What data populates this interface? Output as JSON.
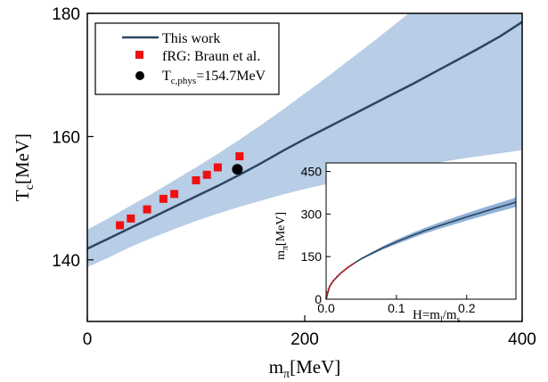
{
  "chart_data": [
    {
      "type": "line",
      "xlabel": "m",
      "xlabel_sub": "π",
      "xlabel_unit": "[MeV]",
      "ylabel": "T",
      "ylabel_sub": "c",
      "ylabel_unit": "[MeV]",
      "xlim": [
        0,
        400
      ],
      "ylim": [
        130,
        180
      ],
      "xticks": [
        0,
        200,
        400
      ],
      "xtick_labels": [
        "0",
        "200",
        "400"
      ],
      "yticks": [
        140,
        160,
        180
      ],
      "ytick_labels": [
        "140",
        "160",
        "180"
      ],
      "grid": false,
      "legend_position": "top-left",
      "series": [
        {
          "name": "This work",
          "kind": "line",
          "color": "#2b4661",
          "x": [
            0,
            20,
            40,
            60,
            80,
            100,
            120,
            140,
            160,
            180,
            200,
            220,
            240,
            260,
            280,
            300,
            320,
            340,
            360,
            380,
            400
          ],
          "y": [
            141.8,
            143.5,
            145.2,
            146.9,
            148.6,
            150.3,
            152.0,
            153.8,
            155.7,
            157.7,
            159.6,
            161.4,
            163.2,
            165.0,
            166.8,
            168.6,
            170.5,
            172.4,
            174.3,
            176.3,
            178.6
          ],
          "band_low": [
            138.8,
            140.4,
            142.1,
            143.6,
            145.0,
            146.3,
            147.5,
            148.6,
            149.6,
            150.6,
            151.5,
            152.3,
            153.1,
            153.8,
            154.5,
            155.1,
            155.7,
            156.3,
            156.8,
            157.3,
            157.8
          ],
          "band_high": [
            144.9,
            146.8,
            148.8,
            150.8,
            152.9,
            155.0,
            157.2,
            159.5,
            161.9,
            164.4,
            167.0,
            169.6,
            172.3,
            175.0,
            177.8,
            180.6,
            183.5,
            186.4,
            189.3,
            192.3,
            195.3
          ],
          "band_color": "#b8cde6"
        },
        {
          "name": "fRG: Braun et al.",
          "kind": "scatter",
          "marker": "square",
          "color": "#ee1111",
          "x": [
            30,
            40,
            55,
            70,
            80,
            100,
            110,
            120,
            140
          ],
          "y": [
            145.6,
            146.7,
            148.2,
            149.9,
            150.7,
            152.9,
            153.8,
            155.0,
            156.8
          ]
        },
        {
          "name": "T",
          "name_sub": "c,phys",
          "name_suffix": "=154.7MeV",
          "kind": "scatter",
          "marker": "circle",
          "color": "#000000",
          "x": [
            138
          ],
          "y": [
            154.7
          ]
        }
      ]
    },
    {
      "type": "line",
      "panel": "inset",
      "xlabel": "H=m",
      "xlabel_sub1": "l",
      "xlabel_mid": "/m",
      "xlabel_sub2": "s",
      "ylabel": "m",
      "ylabel_sub": "π",
      "ylabel_unit": "[MeV]",
      "xlim": [
        0,
        0.27
      ],
      "ylim": [
        0,
        480
      ],
      "xticks": [
        0,
        0.1,
        0.2
      ],
      "xtick_labels": [
        "0.0",
        "0.1",
        "0.2"
      ],
      "yticks": [
        0,
        150,
        300,
        450
      ],
      "ytick_labels": [
        "0",
        "150",
        "300",
        "450"
      ],
      "grid": false,
      "series": [
        {
          "name": "",
          "kind": "line",
          "color": "#2b4661",
          "band_color": "#90b2d8",
          "x": [
            0,
            0.005,
            0.01,
            0.02,
            0.03,
            0.04,
            0.05,
            0.06,
            0.08,
            0.1,
            0.12,
            0.14,
            0.16,
            0.18,
            0.2,
            0.22,
            0.24,
            0.26,
            0.27
          ],
          "y": [
            0,
            45,
            64,
            90,
            110,
            127,
            142,
            155,
            180,
            202,
            222,
            241,
            258,
            274,
            290,
            305,
            320,
            334,
            342
          ],
          "band_halfwidth": [
            0,
            1,
            1,
            1,
            2,
            2,
            3,
            4,
            6,
            8,
            9,
            10,
            11,
            12,
            13,
            14,
            15,
            16,
            17
          ]
        },
        {
          "name": "",
          "kind": "line",
          "color": "#ee1111",
          "x": [
            0.0,
            0.002,
            0.005,
            0.01,
            0.015,
            0.02,
            0.025,
            0.03,
            0.035,
            0.04
          ],
          "y": [
            0,
            28,
            45,
            64,
            78,
            90,
            100,
            110,
            119,
            127
          ]
        }
      ]
    }
  ]
}
